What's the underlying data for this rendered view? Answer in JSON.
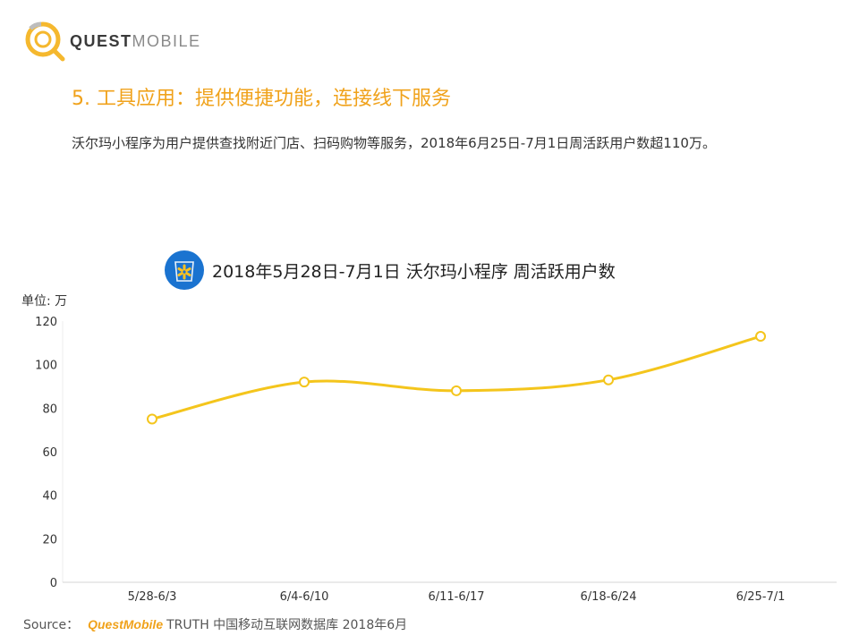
{
  "brand": {
    "name_bold": "QUEST",
    "name_light": "MOBILE",
    "colors": {
      "accent": "#f0a21b",
      "ring": "#f5b82e"
    }
  },
  "section": {
    "title": "5. 工具应用：提供便捷功能，连接线下服务"
  },
  "description": "沃尔玛小程序为用户提供查找附近门店、扫码购物等服务，2018年6月25日-7月1日周活跃用户数超110万。",
  "chart_header": {
    "icon": "walmart-spark-icon",
    "title": "2018年5月28日-7月1日 沃尔玛小程序 周活跃用户数"
  },
  "unit_label": "单位: 万",
  "chart_data": {
    "type": "line",
    "categories": [
      "5/28-6/3",
      "6/4-6/10",
      "6/11-6/17",
      "6/18-6/24",
      "6/25-7/1"
    ],
    "values": [
      75,
      92,
      88,
      93,
      113
    ],
    "ylim": [
      0,
      120
    ],
    "yticks": [
      0,
      20,
      40,
      60,
      80,
      100,
      120
    ],
    "line_color": "#f4c51c",
    "grid": false,
    "smooth": true
  },
  "source": {
    "label": "Source：",
    "brand": "QuestMobile",
    "text": "TRUTH 中国移动互联网数据库 2018年6月"
  }
}
